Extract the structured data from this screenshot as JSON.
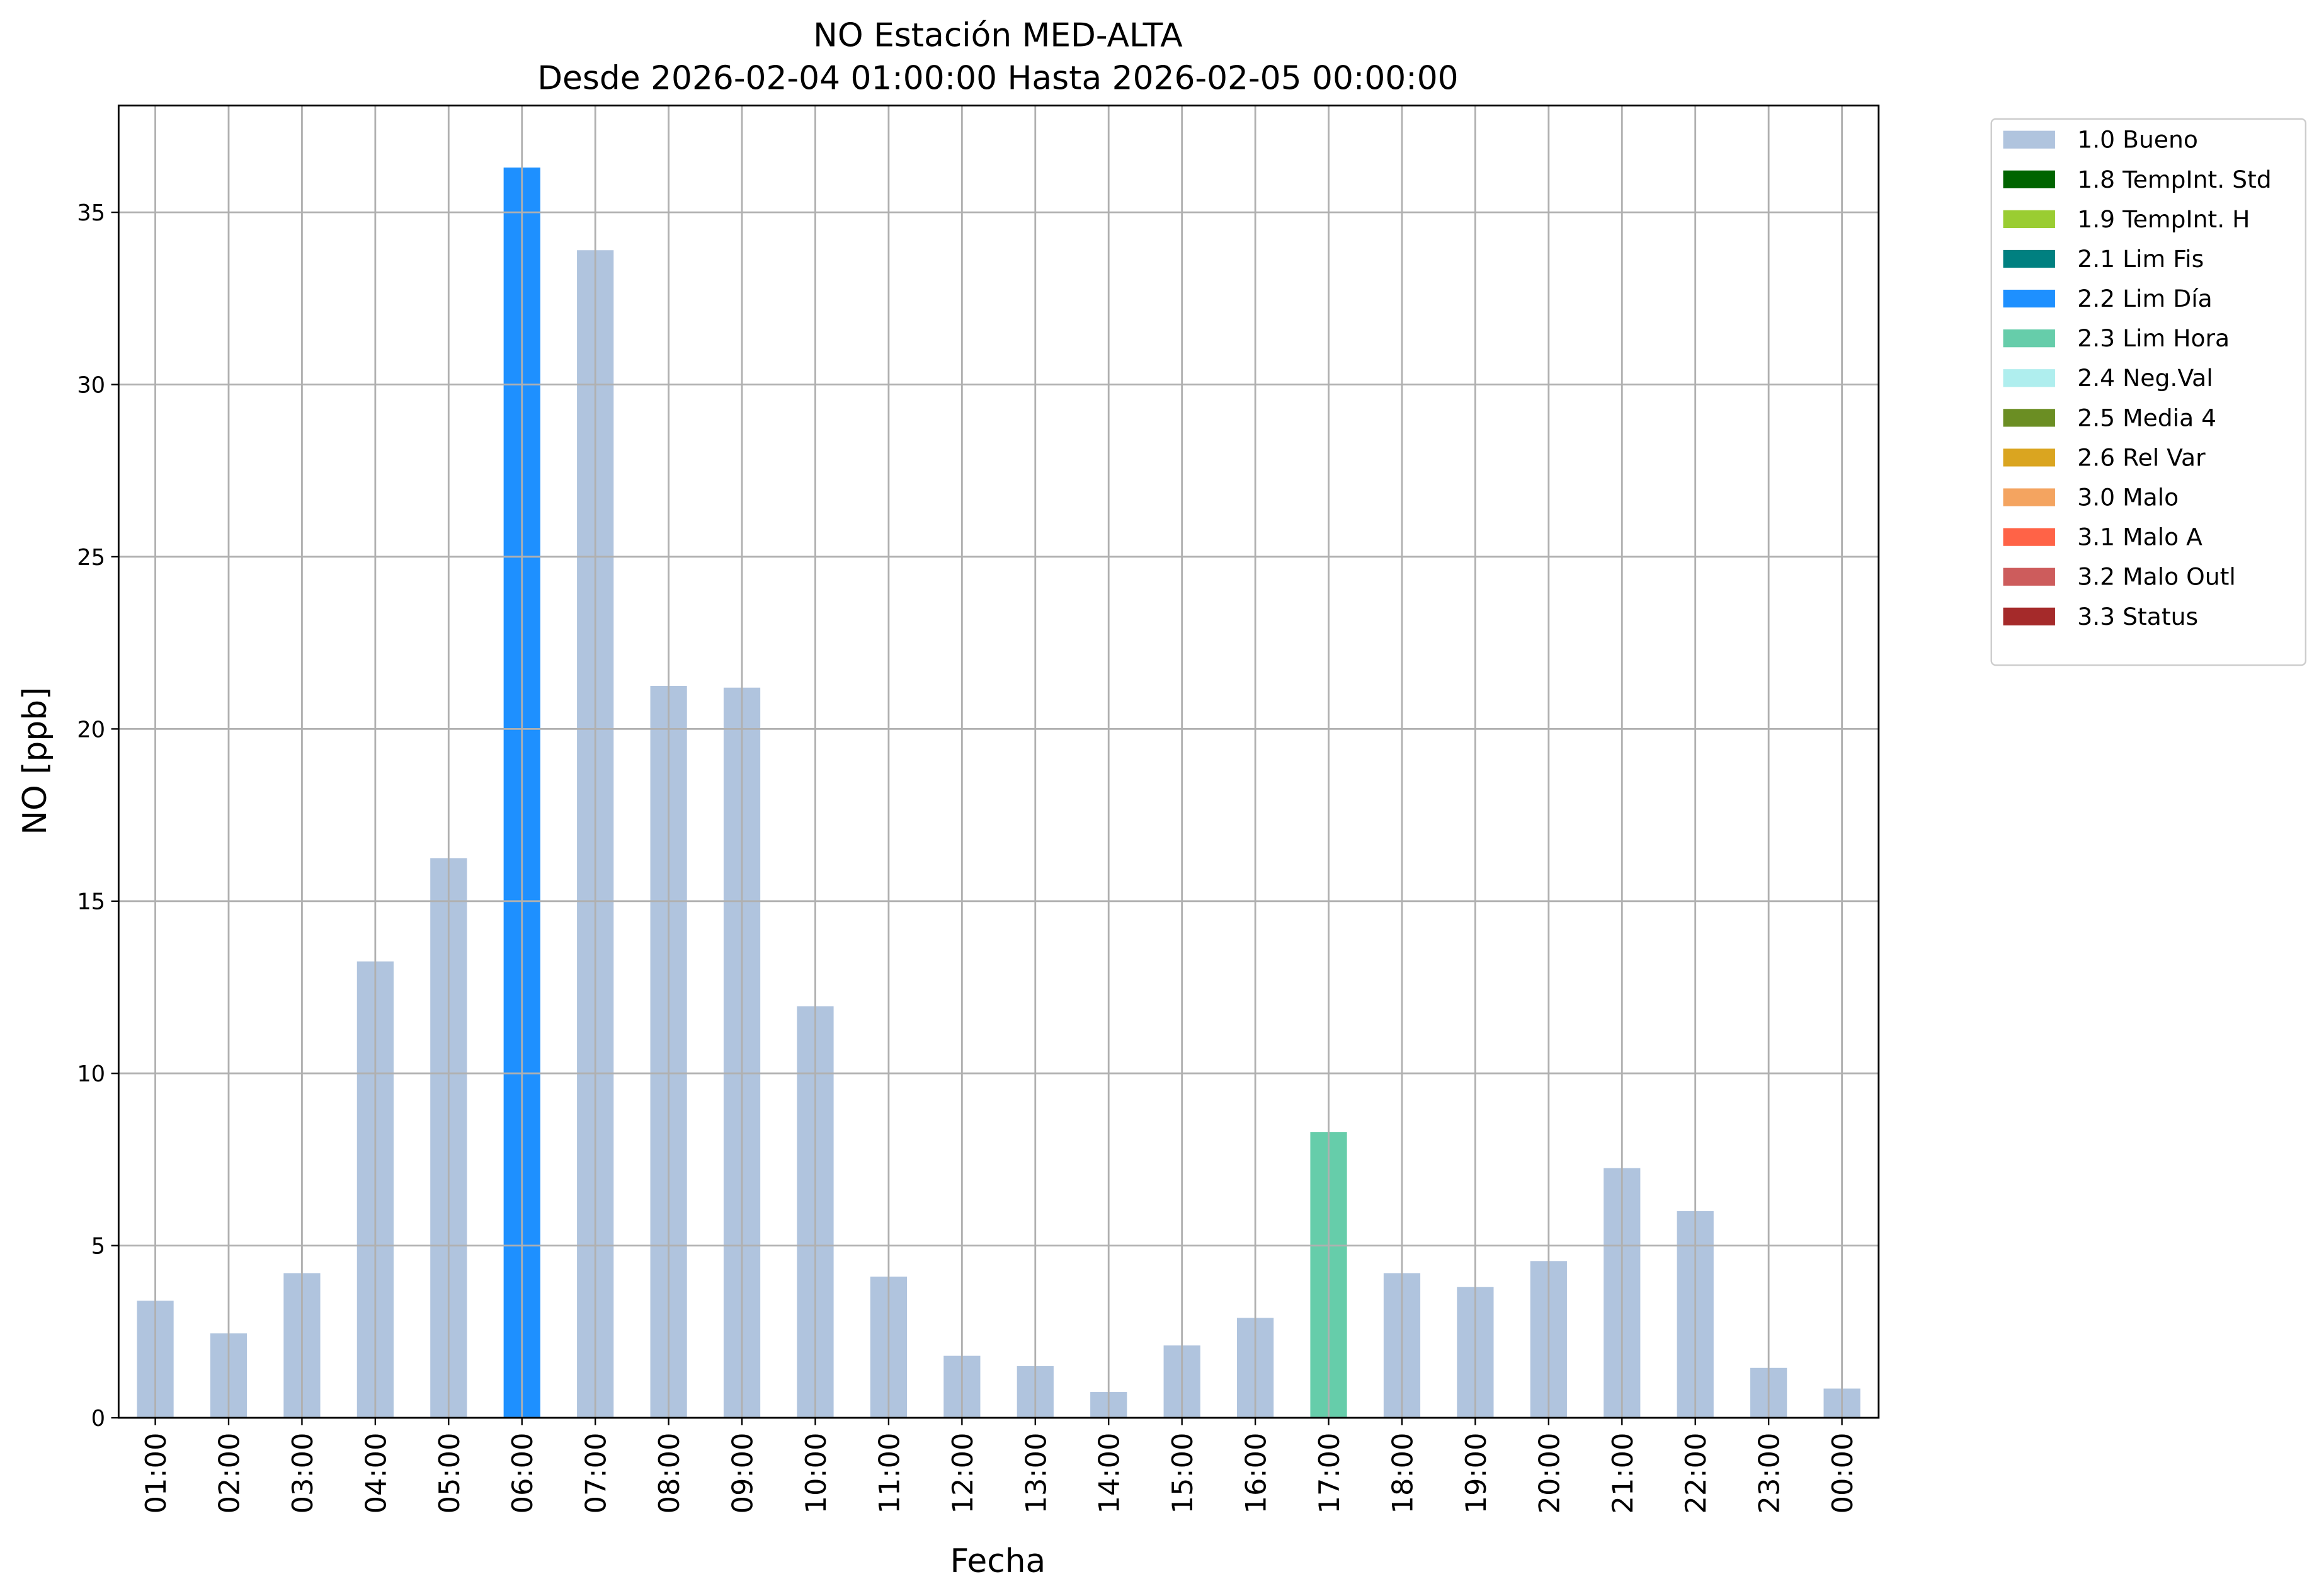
{
  "chart_data": {
    "type": "bar",
    "stacked": true,
    "title": "NO Estación MED-ALTA",
    "subtitle": "Desde 2026-02-04 01:00:00 Hasta 2026-02-05 00:00:00",
    "x_label": "Fecha",
    "y_label": "NO [ppb]",
    "categories": [
      "01:00",
      "02:00",
      "03:00",
      "04:00",
      "05:00",
      "06:00",
      "07:00",
      "08:00",
      "09:00",
      "10:00",
      "11:00",
      "12:00",
      "13:00",
      "14:00",
      "15:00",
      "16:00",
      "17:00",
      "18:00",
      "19:00",
      "20:00",
      "21:00",
      "22:00",
      "23:00",
      "00:00"
    ],
    "series": [
      {
        "name": "1.0 Bueno",
        "color": "#b0c4de",
        "values": [
          3.4,
          2.45,
          4.2,
          13.25,
          16.25,
          null,
          33.9,
          21.25,
          21.2,
          11.95,
          4.1,
          1.8,
          1.5,
          0.75,
          2.1,
          2.9,
          null,
          4.2,
          3.8,
          4.55,
          7.25,
          6.0,
          1.45,
          0.85
        ]
      },
      {
        "name": "1.8 TempInt. Std",
        "color": "#006400",
        "values": [
          null,
          null,
          null,
          null,
          null,
          null,
          null,
          null,
          null,
          null,
          null,
          null,
          null,
          null,
          null,
          null,
          null,
          null,
          null,
          null,
          null,
          null,
          null,
          null
        ]
      },
      {
        "name": "1.9 TempInt. H",
        "color": "#9acd32",
        "values": [
          null,
          null,
          null,
          null,
          null,
          null,
          null,
          null,
          null,
          null,
          null,
          null,
          null,
          null,
          null,
          null,
          null,
          null,
          null,
          null,
          null,
          null,
          null,
          null
        ]
      },
      {
        "name": "2.1 Lim Fis",
        "color": "#008080",
        "values": [
          null,
          null,
          null,
          null,
          null,
          null,
          null,
          null,
          null,
          null,
          null,
          null,
          null,
          null,
          null,
          null,
          null,
          null,
          null,
          null,
          null,
          null,
          null,
          null
        ]
      },
      {
        "name": "2.2 Lim Día",
        "color": "#1e90ff",
        "values": [
          null,
          null,
          null,
          null,
          null,
          36.3,
          null,
          null,
          null,
          null,
          null,
          null,
          null,
          null,
          null,
          null,
          null,
          null,
          null,
          null,
          null,
          null,
          null,
          null
        ]
      },
      {
        "name": "2.3 Lim Hora",
        "color": "#66cdaa",
        "values": [
          null,
          null,
          null,
          null,
          null,
          null,
          null,
          null,
          null,
          null,
          null,
          null,
          null,
          null,
          null,
          null,
          8.3,
          null,
          null,
          null,
          null,
          null,
          null,
          null
        ]
      },
      {
        "name": "2.4 Neg.Val",
        "color": "#afeeee",
        "values": [
          null,
          null,
          null,
          null,
          null,
          null,
          null,
          null,
          null,
          null,
          null,
          null,
          null,
          null,
          null,
          null,
          null,
          null,
          null,
          null,
          null,
          null,
          null,
          null
        ]
      },
      {
        "name": "2.5 Media 4",
        "color": "#6b8e23",
        "values": [
          null,
          null,
          null,
          null,
          null,
          null,
          null,
          null,
          null,
          null,
          null,
          null,
          null,
          null,
          null,
          null,
          null,
          null,
          null,
          null,
          null,
          null,
          null,
          null
        ]
      },
      {
        "name": "2.6 Rel Var",
        "color": "#daa520",
        "values": [
          null,
          null,
          null,
          null,
          null,
          null,
          null,
          null,
          null,
          null,
          null,
          null,
          null,
          null,
          null,
          null,
          null,
          null,
          null,
          null,
          null,
          null,
          null,
          null
        ]
      },
      {
        "name": "3.0 Malo",
        "color": "#f4a460",
        "values": [
          null,
          null,
          null,
          null,
          null,
          null,
          null,
          null,
          null,
          null,
          null,
          null,
          null,
          null,
          null,
          null,
          null,
          null,
          null,
          null,
          null,
          null,
          null,
          null
        ]
      },
      {
        "name": "3.1 Malo A",
        "color": "#ff6347",
        "values": [
          null,
          null,
          null,
          null,
          null,
          null,
          null,
          null,
          null,
          null,
          null,
          null,
          null,
          null,
          null,
          null,
          null,
          null,
          null,
          null,
          null,
          null,
          null,
          null
        ]
      },
      {
        "name": "3.2 Malo Outl",
        "color": "#cd5c5c",
        "values": [
          null,
          null,
          null,
          null,
          null,
          null,
          null,
          null,
          null,
          null,
          null,
          null,
          null,
          null,
          null,
          null,
          null,
          null,
          null,
          null,
          null,
          null,
          null,
          null
        ]
      },
      {
        "name": "3.3 Status",
        "color": "#a52a2a",
        "values": [
          null,
          null,
          null,
          null,
          null,
          null,
          null,
          null,
          null,
          null,
          null,
          null,
          null,
          null,
          null,
          null,
          null,
          null,
          null,
          null,
          null,
          null,
          null,
          null
        ]
      }
    ],
    "ylim": [
      0,
      38.1
    ],
    "yticks": [
      0,
      5,
      10,
      15,
      20,
      25,
      30,
      35
    ],
    "grid": true,
    "legend_position": "outside-right"
  }
}
